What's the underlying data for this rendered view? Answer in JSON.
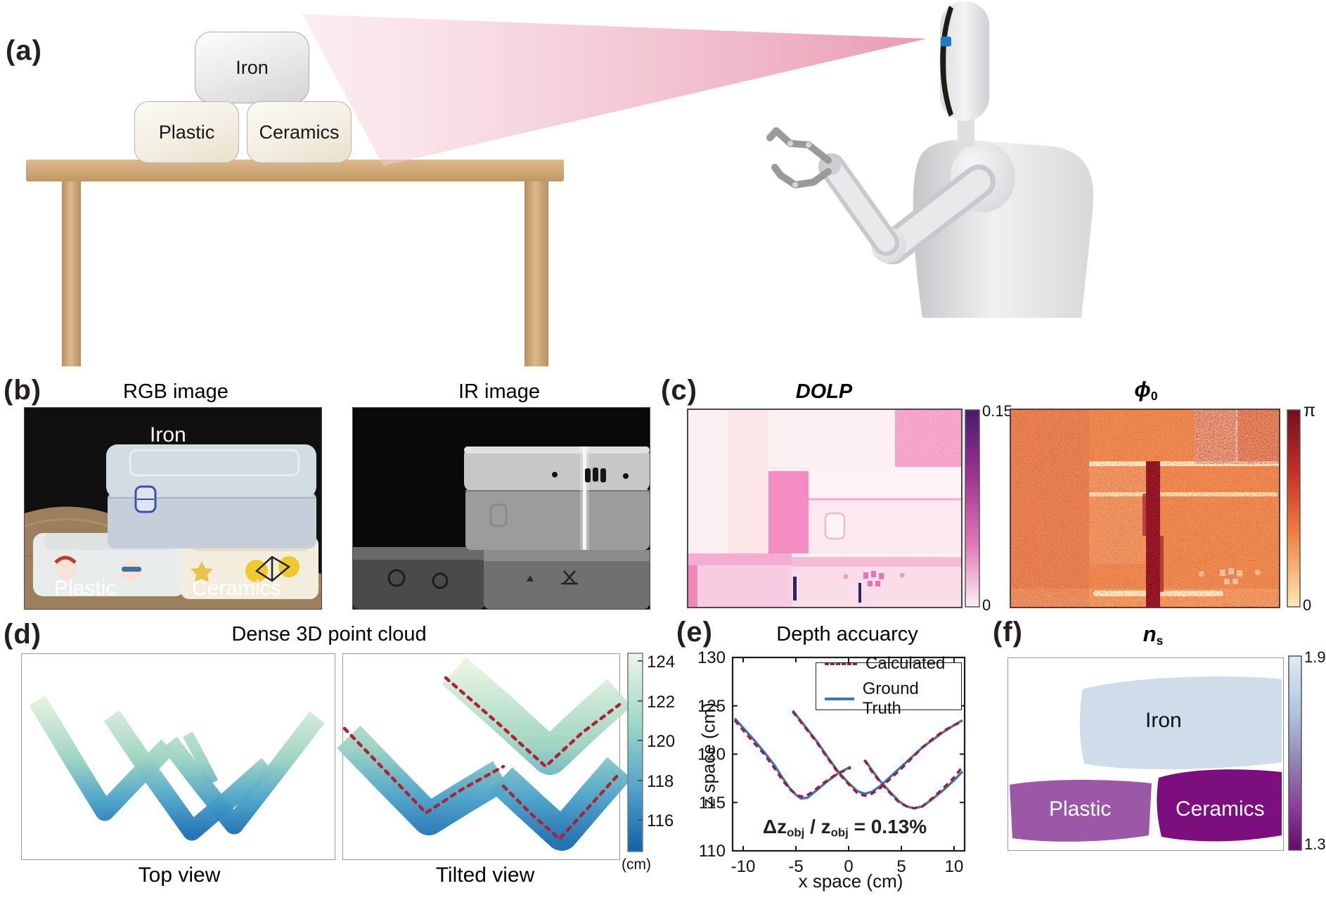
{
  "panels": {
    "a": {
      "label": "(a)",
      "boxes": {
        "iron": "Iron",
        "plastic": "Plastic",
        "ceramics": "Ceramics"
      }
    },
    "b": {
      "label": "(b)",
      "rgb_title": "RGB image",
      "ir_title": "IR image",
      "overlay": {
        "iron": "Iron",
        "plastic": "Plastic",
        "ceramics": "Ceramics"
      }
    },
    "c": {
      "label": "(c)",
      "dolp_title": "DOLP",
      "phi_main": "ϕ",
      "phi_sub": "0",
      "dolp_cb_max": "0.15",
      "dolp_cb_min": "0",
      "phi_cb_max": "π",
      "phi_cb_min": "0"
    },
    "d": {
      "label": "(d)",
      "title": "Dense 3D point cloud",
      "left_caption": "Top view",
      "right_caption": "Tilted view",
      "cb_unit": "(cm)",
      "cb_ticks": [
        "124",
        "122",
        "120",
        "118",
        "116"
      ]
    },
    "e": {
      "label": "(e)",
      "title": "Depth accuarcy",
      "legend_calculated": "Calculated",
      "legend_ground_truth": "Ground Truth",
      "xlabel": "x space (cm)",
      "ylabel": "z space (cm)",
      "annotation_full": "Δz_obj / z_obj = 0.13%",
      "ann_d1": "Δz",
      "ann_s1": "obj",
      "ann_d2": " / z",
      "ann_s2": "obj",
      "ann_d3": " = 0.13%"
    },
    "f": {
      "label": "(f)",
      "title_main": "n",
      "title_sub": "s",
      "regions": {
        "iron": "Iron",
        "plastic": "Plastic",
        "ceramics": "Ceramics"
      },
      "cb_max": "1.9",
      "cb_min": "1.3"
    }
  },
  "colors": {
    "cone_pink": "#ec9cb4",
    "robot_gray": "#e2e2e5",
    "table_tan": "#cfa878",
    "dolp_cb_top": "#471a6e",
    "dolp_cb_bottom": "#fdeff5",
    "phi_cb_top": "#70101f",
    "phi_cb_bottom": "#fce9b4",
    "cloud_green": "#e6f3e0",
    "cloud_blue": "#1b6cb2",
    "calculated_red": "#a6192e",
    "ground_truth_blue": "#3b77b5",
    "ns_iron": "#cfdcea",
    "ns_plastic": "#9b58a6",
    "ns_ceramics": "#7d0e7e",
    "ns_cb_top": "#e0ebf5",
    "ns_cb_bottom": "#650b6b"
  },
  "point_cloud": {
    "top": {
      "ribbons": [
        {
          "w": 27,
          "pts": [
            [
              22,
              66
            ],
            [
              70,
              146
            ],
            [
              118,
              224
            ],
            [
              163,
              177
            ],
            [
              208,
              131
            ]
          ]
        },
        {
          "w": 27,
          "pts": [
            [
              128,
              88
            ],
            [
              185,
              172
            ],
            [
              242,
              252
            ],
            [
              296,
              206
            ],
            [
              350,
              158
            ]
          ]
        },
        {
          "w": 27,
          "pts": [
            [
              210,
              126
            ],
            [
              257,
              187
            ],
            [
              302,
              243
            ],
            [
              361,
              167
            ],
            [
              420,
              90
            ]
          ]
        },
        {
          "w": 16,
          "pts": [
            [
              236,
              114
            ],
            [
              255,
              150
            ],
            [
              272,
              183
            ]
          ]
        }
      ]
    },
    "tilted": {
      "ribbons": [
        {
          "w": 52,
          "pts": [
            [
              158,
              24
            ],
            [
              226,
              84
            ],
            [
              294,
              146
            ],
            [
              345,
              98
            ],
            [
              393,
              55
            ]
          ]
        },
        {
          "w": 46,
          "pts": [
            [
              8,
              118
            ],
            [
              64,
              176
            ],
            [
              122,
              235
            ],
            [
              172,
              204
            ],
            [
              225,
              172
            ]
          ]
        },
        {
          "w": 46,
          "pts": [
            [
              225,
              178
            ],
            [
              267,
              217
            ],
            [
              311,
              257
            ],
            [
              353,
              208
            ],
            [
              393,
              162
            ]
          ]
        }
      ],
      "dashes": [
        [
          [
            146,
            34
          ],
          [
            222,
            100
          ],
          [
            288,
            160
          ],
          [
            340,
            112
          ],
          [
            393,
            72
          ]
        ],
        [
          [
            2,
            106
          ],
          [
            60,
            166
          ],
          [
            118,
            226
          ],
          [
            170,
            192
          ],
          [
            228,
            160
          ]
        ],
        [
          [
            228,
            188
          ],
          [
            268,
            228
          ],
          [
            308,
            263
          ],
          [
            352,
            215
          ],
          [
            393,
            170
          ]
        ]
      ]
    }
  },
  "chart_data": {
    "type": "line",
    "title": "Depth accuarcy",
    "xlabel": "x space (cm)",
    "ylabel": "z space (cm)",
    "xlim": [
      -11,
      11
    ],
    "ylim": [
      110,
      130
    ],
    "xticks": [
      -10,
      -5,
      0,
      5,
      10
    ],
    "yticks": [
      110,
      115,
      120,
      125,
      130
    ],
    "grid": false,
    "legend_position": "top-right",
    "annotation": "Δz_obj / z_obj = 0.13%",
    "series": [
      {
        "name": "Calculated",
        "style": "dashed",
        "color": "#a6192e",
        "segments": [
          [
            [
              -10.8,
              123.5
            ],
            [
              -9,
              121.2
            ],
            [
              -8,
              120.0
            ],
            [
              -7,
              118.5
            ],
            [
              -6.2,
              117.2
            ],
            [
              -5.5,
              116.3
            ],
            [
              -4.8,
              115.7
            ],
            [
              -4.2,
              115.6
            ],
            [
              -3.4,
              116.1
            ],
            [
              -2.4,
              117.0
            ],
            [
              -1.2,
              117.9
            ],
            [
              0.2,
              118.6
            ]
          ],
          [
            [
              -5.3,
              124.4
            ],
            [
              -4,
              122.6
            ],
            [
              -3,
              121.2
            ],
            [
              -2,
              119.6
            ],
            [
              -1,
              118.1
            ],
            [
              0,
              116.9
            ],
            [
              0.8,
              116.0
            ],
            [
              1.5,
              115.7
            ],
            [
              2.2,
              115.9
            ],
            [
              3,
              116.5
            ],
            [
              4,
              117.5
            ],
            [
              5,
              118.5
            ],
            [
              6,
              119.6
            ],
            [
              7,
              120.7
            ],
            [
              8,
              121.6
            ],
            [
              9,
              122.4
            ],
            [
              10,
              123.0
            ],
            [
              10.8,
              123.4
            ]
          ],
          [
            [
              1.5,
              119.4
            ],
            [
              2.2,
              118.2
            ],
            [
              3,
              117.1
            ],
            [
              4,
              115.9
            ],
            [
              4.8,
              115.0
            ],
            [
              5.5,
              114.6
            ],
            [
              6.2,
              114.4
            ],
            [
              7,
              114.6
            ],
            [
              8,
              115.5
            ],
            [
              9,
              116.5
            ],
            [
              10,
              117.6
            ],
            [
              10.8,
              118.7
            ]
          ]
        ]
      },
      {
        "name": "Ground Truth",
        "style": "solid",
        "color": "#3b77b5",
        "segments": [
          [
            [
              -10.8,
              123.7
            ],
            [
              -9,
              121.5
            ],
            [
              -8,
              120.2
            ],
            [
              -7,
              118.8
            ],
            [
              -6.3,
              117.6
            ],
            [
              -5.6,
              116.5
            ],
            [
              -5,
              115.8
            ],
            [
              -4.5,
              115.4
            ],
            [
              -3.9,
              115.5
            ],
            [
              -3.1,
              116.2
            ],
            [
              -2,
              117.2
            ],
            [
              -1,
              118.0
            ],
            [
              0.2,
              118.7
            ]
          ],
          [
            [
              -5.3,
              124.5
            ],
            [
              -4,
              122.7
            ],
            [
              -3,
              121.3
            ],
            [
              -2,
              119.7
            ],
            [
              -1,
              118.2
            ],
            [
              0,
              117.0
            ],
            [
              0.8,
              116.2
            ],
            [
              1.5,
              115.9
            ],
            [
              2.2,
              116.1
            ],
            [
              3,
              116.7
            ],
            [
              4,
              117.7
            ],
            [
              5,
              118.7
            ],
            [
              6,
              119.7
            ],
            [
              7,
              120.7
            ],
            [
              8,
              121.5
            ],
            [
              9,
              122.3
            ],
            [
              10,
              123.0
            ],
            [
              10.8,
              123.5
            ]
          ],
          [
            [
              1.6,
              119.3
            ],
            [
              2.3,
              118.2
            ],
            [
              3,
              117.2
            ],
            [
              4,
              116.0
            ],
            [
              4.8,
              115.1
            ],
            [
              5.5,
              114.6
            ],
            [
              6.2,
              114.4
            ],
            [
              7,
              114.6
            ],
            [
              8,
              115.4
            ],
            [
              9,
              116.3
            ],
            [
              10,
              117.3
            ],
            [
              10.8,
              118.2
            ]
          ]
        ]
      }
    ]
  },
  "colorbars": {
    "dolp": {
      "max": 0.15,
      "min": 0
    },
    "phi0": {
      "max": "π",
      "min": 0
    },
    "depth_cm": {
      "ticks": [
        124,
        122,
        120,
        118,
        116
      ],
      "unit": "(cm)"
    },
    "ns": {
      "max": 1.9,
      "min": 1.3
    }
  }
}
